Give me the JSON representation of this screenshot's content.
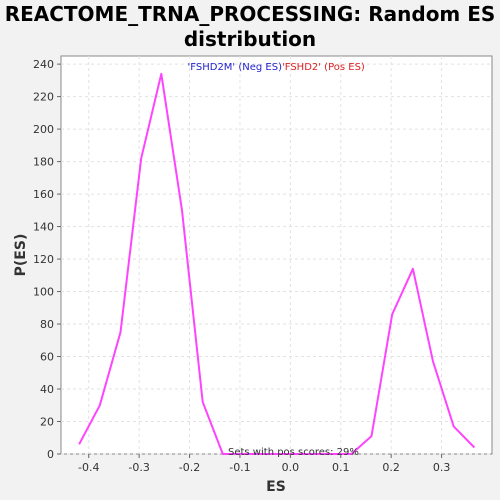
{
  "chart_data": {
    "type": "line",
    "title": "REACTOME_TRNA_PROCESSING: Random ES distribution",
    "xlabel": "ES",
    "ylabel": "P(ES)",
    "xlim": [
      -0.455,
      0.4
    ],
    "ylim": [
      0,
      245
    ],
    "x_ticks": [
      -0.4,
      -0.3,
      -0.2,
      -0.1,
      0.0,
      0.1,
      0.2,
      0.3
    ],
    "x_tick_labels": [
      "-0.4",
      "-0.3",
      "-0.2",
      "-0.1",
      "0.0",
      "0.1",
      "0.2",
      "0.3"
    ],
    "y_ticks": [
      0,
      20,
      40,
      60,
      80,
      100,
      120,
      140,
      160,
      180,
      200,
      220,
      240
    ],
    "y_tick_labels": [
      "0",
      "20",
      "40",
      "60",
      "80",
      "100",
      "120",
      "140",
      "160",
      "180",
      "200",
      "220",
      "240"
    ],
    "grid": true,
    "series": [
      {
        "color": "#ff44ff",
        "x": [
          -0.419,
          -0.378,
          -0.337,
          -0.296,
          -0.256,
          -0.215,
          -0.174,
          -0.134,
          0.0,
          0.121,
          0.161,
          0.202,
          0.243,
          0.283,
          0.324,
          0.365
        ],
        "y": [
          6,
          30,
          75,
          182,
          234,
          150,
          32,
          0,
          0,
          0,
          11,
          86,
          114,
          57,
          17,
          4
        ]
      }
    ],
    "legend": {
      "placement": "top-center",
      "entries": [
        {
          "text": "'FSHD2M' (Neg ES)",
          "color": "#2222cc"
        },
        {
          "text": "'FSHD2' (Pos ES)",
          "color": "#dd2222"
        }
      ]
    },
    "annotation": "Sets with pos scores: 29%"
  }
}
